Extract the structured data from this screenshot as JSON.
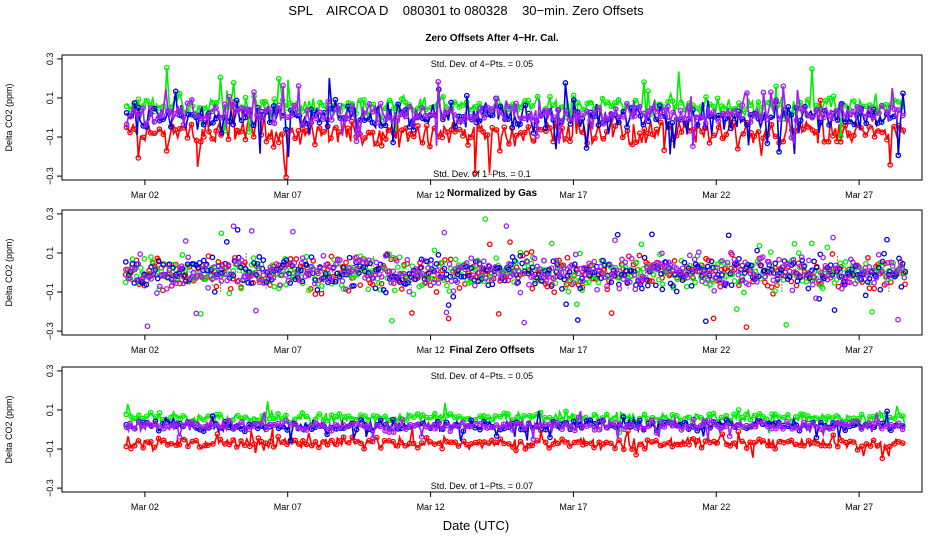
{
  "title": "SPL    AIRCOA D    080301 to 080328    30−min. Zero Offsets",
  "xlabel": "Date (UTC)",
  "colors": {
    "red": "#ff0000",
    "green": "#00ee00",
    "blue": "#0000dd",
    "purple": "#a020f0",
    "black": "#000000"
  },
  "chart_data": [
    {
      "type": "scatter",
      "title": "Zero Offsets After 4−Hr. Cal.",
      "ylabel": "Delta CO2 (ppm)",
      "ylim": [
        -0.32,
        0.32
      ],
      "yticks": [
        -0.3,
        -0.1,
        0.1,
        0.3
      ],
      "ytick_labels": [
        "−0.3",
        "−0.1",
        "0.1",
        "0.3"
      ],
      "xlim": [
        -1.9,
        28.2
      ],
      "xticks": [
        1,
        6,
        11,
        16,
        21,
        26
      ],
      "xtick_labels": [
        "Mar 02",
        "Mar 07",
        "Mar 12",
        "Mar 17",
        "Mar 22",
        "Mar 27"
      ],
      "annotations": [
        "Std. Dev. of 4−Pts. = 0.05",
        "Std. Dev. of 1−Pts. = 0.1"
      ],
      "series": [
        {
          "name": "red",
          "color": "#ff0000",
          "style": "line+points",
          "center": -0.08,
          "spread": 0.1
        },
        {
          "name": "green",
          "color": "#00ee00",
          "style": "line+points",
          "center": 0.06,
          "spread": 0.08
        },
        {
          "name": "blue",
          "color": "#0000dd",
          "style": "line+points",
          "center": 0.0,
          "spread": 0.1
        },
        {
          "name": "purple",
          "color": "#a020f0",
          "style": "line+points",
          "center": 0.02,
          "spread": 0.08
        }
      ]
    },
    {
      "type": "scatter",
      "title": "Normalized by Gas",
      "ylabel": "Delta CO2 (ppm)",
      "ylim": [
        -0.32,
        0.32
      ],
      "yticks": [
        -0.3,
        -0.1,
        0.1,
        0.3
      ],
      "ytick_labels": [
        "−0.3",
        "−0.1",
        "0.1",
        "0.3"
      ],
      "xlim": [
        -1.9,
        28.2
      ],
      "xticks": [
        1,
        6,
        11,
        16,
        21,
        26
      ],
      "xtick_labels": [
        "Mar 02",
        "Mar 07",
        "Mar 12",
        "Mar 17",
        "Mar 22",
        "Mar 27"
      ],
      "annotations": [],
      "series": [
        {
          "name": "black",
          "color": "#000000",
          "style": "dotted",
          "center": 0.0,
          "spread": 0.05
        },
        {
          "name": "red",
          "color": "#ff0000",
          "style": "points",
          "center": 0.0,
          "spread": 0.12
        },
        {
          "name": "green",
          "color": "#00ee00",
          "style": "points",
          "center": 0.0,
          "spread": 0.12
        },
        {
          "name": "blue",
          "color": "#0000dd",
          "style": "points",
          "center": 0.0,
          "spread": 0.12
        },
        {
          "name": "purple",
          "color": "#a020f0",
          "style": "points",
          "center": 0.0,
          "spread": 0.12
        }
      ]
    },
    {
      "type": "scatter",
      "title": "Final Zero Offsets",
      "ylabel": "Delta CO2 (ppm)",
      "ylim": [
        -0.32,
        0.32
      ],
      "yticks": [
        -0.3,
        -0.1,
        0.1,
        0.3
      ],
      "ytick_labels": [
        "−0.3",
        "−0.1",
        "0.1",
        "0.3"
      ],
      "xlim": [
        -1.9,
        28.2
      ],
      "xticks": [
        1,
        6,
        11,
        16,
        21,
        26
      ],
      "xtick_labels": [
        "Mar 02",
        "Mar 07",
        "Mar 12",
        "Mar 17",
        "Mar 22",
        "Mar 27"
      ],
      "annotations": [
        "Std. Dev. of 4−Pts. = 0.05",
        "Std. Dev. of 1−Pts. = 0.07"
      ],
      "series": [
        {
          "name": "red",
          "color": "#ff0000",
          "style": "line+points",
          "center": -0.07,
          "spread": 0.04
        },
        {
          "name": "green",
          "color": "#00ee00",
          "style": "line+points",
          "center": 0.06,
          "spread": 0.04
        },
        {
          "name": "blue",
          "color": "#0000dd",
          "style": "line+points",
          "center": 0.02,
          "spread": 0.04
        },
        {
          "name": "purple",
          "color": "#a020f0",
          "style": "line+points",
          "center": 0.02,
          "spread": 0.04
        }
      ]
    }
  ]
}
